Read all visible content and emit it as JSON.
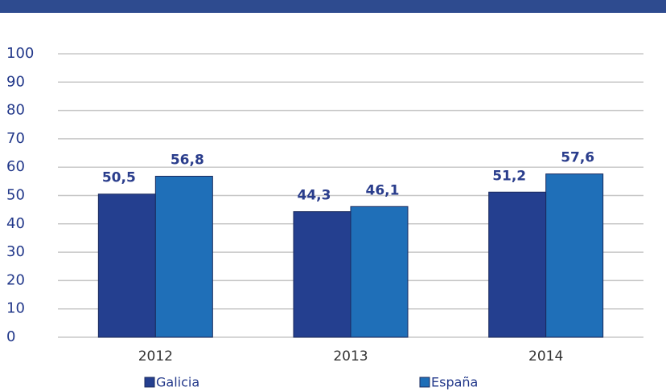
{
  "chart_data": {
    "type": "bar",
    "categories": [
      "2012",
      "2013",
      "2014"
    ],
    "series": [
      {
        "name": "Galicia",
        "color": "#243f8f",
        "values": [
          50.5,
          44.3,
          51.2
        ],
        "value_labels": [
          "50,5",
          "44,3",
          "51,2"
        ]
      },
      {
        "name": "España",
        "color": "#1f6fb8",
        "values": [
          56.8,
          46.1,
          57.6
        ],
        "value_labels": [
          "56,8",
          "46,1",
          "57,6"
        ]
      }
    ],
    "ylim": [
      0,
      100
    ],
    "yticks": [
      0,
      10,
      20,
      30,
      40,
      50,
      60,
      70,
      80,
      90,
      100
    ],
    "grid": true
  }
}
